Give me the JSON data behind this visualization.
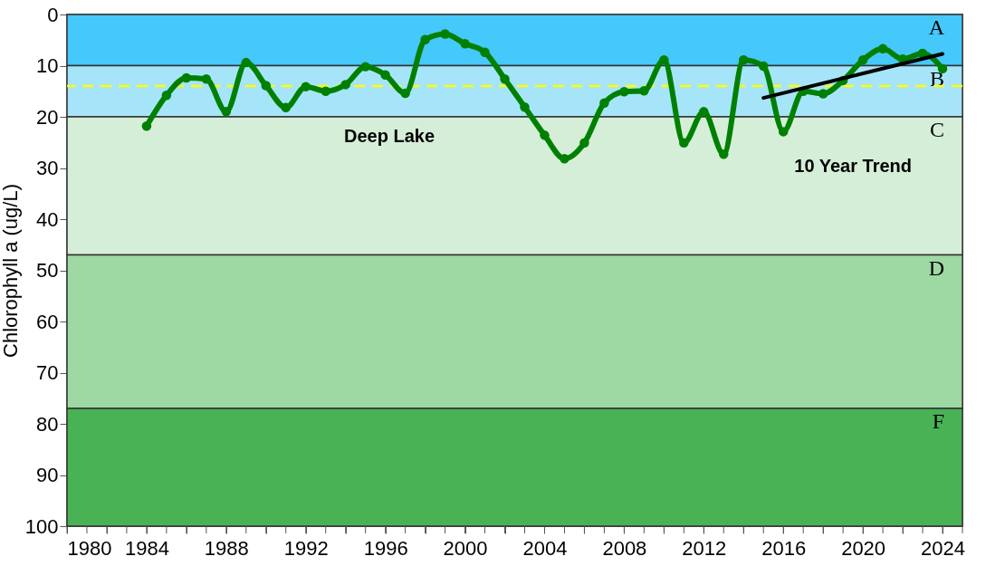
{
  "chart_data": {
    "type": "line",
    "ylabel": "Chlorophyll a (ug/L)",
    "x": [
      1984,
      1985,
      1986,
      1987,
      1988,
      1989,
      1990,
      1991,
      1992,
      1993,
      1994,
      1995,
      1996,
      1997,
      1998,
      1999,
      2000,
      2001,
      2002,
      2003,
      2004,
      2005,
      2006,
      2007,
      2008,
      2009,
      2010,
      2011,
      2012,
      2013,
      2014,
      2015,
      2016,
      2017,
      2018,
      2019,
      2020,
      2021,
      2022,
      2023,
      2024
    ],
    "series": [
      {
        "color": "#008000",
        "values": [
          21.8,
          15.8,
          12.4,
          12.6,
          19.0,
          9.4,
          13.9,
          18.2,
          14.1,
          15.0,
          13.7,
          10.2,
          11.8,
          15.4,
          4.9,
          3.8,
          5.7,
          7.4,
          12.6,
          18.1,
          23.6,
          28.2,
          25.1,
          17.3,
          15.1,
          14.9,
          8.9,
          25.1,
          19.0,
          27.3,
          8.9,
          10.1,
          22.9,
          15.0,
          15.5,
          12.9,
          8.9,
          6.7,
          8.7,
          7.6,
          10.6
        ]
      },
      {
        "name": "10 Year Trend",
        "type": "line",
        "color": "#000000",
        "marker": "none",
        "x": [
          2015,
          2024
        ],
        "values": [
          16.3,
          7.7
        ]
      }
    ],
    "xlim": [
      1980,
      2025
    ],
    "xticks": [
      1980,
      {
        "value": 1981,
        "label": null
      },
      {
        "value": 1982,
        "label": null
      },
      {
        "value": 1983,
        "label": null
      },
      1984,
      {
        "value": 1985,
        "label": null
      },
      {
        "value": 1986,
        "label": null
      },
      {
        "value": 1987,
        "label": null
      },
      1988,
      {
        "value": 1989,
        "label": null
      },
      {
        "value": 1990,
        "label": null
      },
      {
        "value": 1991,
        "label": null
      },
      1992,
      {
        "value": 1993,
        "label": null
      },
      {
        "value": 1994,
        "label": null
      },
      {
        "value": 1995,
        "label": null
      },
      1996,
      {
        "value": 1997,
        "label": null
      },
      {
        "value": 1998,
        "label": null
      },
      {
        "value": 1999,
        "label": null
      },
      2000,
      {
        "value": 2001,
        "label": null
      },
      {
        "value": 2002,
        "label": null
      },
      {
        "value": 2003,
        "label": null
      },
      2004,
      {
        "value": 2005,
        "label": null
      },
      {
        "value": 2006,
        "label": null
      },
      {
        "value": 2007,
        "label": null
      },
      2008,
      {
        "value": 2009,
        "label": null
      },
      {
        "value": 2010,
        "label": null
      },
      {
        "value": 2011,
        "label": null
      },
      2012,
      {
        "value": 2013,
        "label": null
      },
      {
        "value": 2014,
        "label": null
      },
      {
        "value": 2015,
        "label": null
      },
      2016,
      {
        "value": 2017,
        "label": null
      },
      {
        "value": 2018,
        "label": null
      },
      {
        "value": 2019,
        "label": null
      },
      2020,
      {
        "value": 2021,
        "label": null
      },
      {
        "value": 2022,
        "label": null
      },
      {
        "value": 2023,
        "label": null
      },
      2024,
      {
        "value": 2025,
        "label": null
      }
    ],
    "ylim": [
      100,
      0
    ],
    "yticks": [
      0,
      10,
      20,
      30,
      40,
      50,
      60,
      70,
      80,
      90,
      100
    ],
    "bands": [
      {
        "axis": "y",
        "from": 0,
        "to": 10,
        "label": "A",
        "color": "#45c8fa"
      },
      {
        "axis": "y",
        "from": 10,
        "to": 20,
        "label": "B",
        "color": "#a6e5f9"
      },
      {
        "axis": "y",
        "from": 20,
        "to": 47,
        "label": "C",
        "color": "#d5eed8"
      },
      {
        "axis": "y",
        "from": 47,
        "to": 77,
        "label": "D",
        "color": "#9ed9a3"
      },
      {
        "axis": "y",
        "from": 77,
        "to": 100,
        "label": "F",
        "color": "#48b255"
      }
    ],
    "ref_lines": [
      {
        "axis": "y",
        "value": 14,
        "label": "Deep Lake",
        "color": "#ffff00",
        "line_style": "dashed"
      }
    ],
    "marker": "circle",
    "line_style": "solid",
    "grid": false,
    "legend": false
  }
}
